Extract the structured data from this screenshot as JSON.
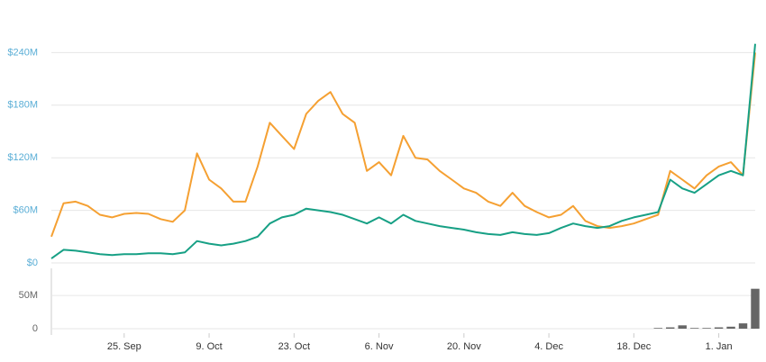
{
  "chart_data": [
    {
      "type": "line",
      "categories": [
        null,
        null,
        null,
        null,
        null,
        null,
        "25. Sep",
        null,
        null,
        null,
        null,
        null,
        null,
        "9. Oct",
        null,
        null,
        null,
        null,
        null,
        null,
        "23. Oct",
        null,
        null,
        null,
        null,
        null,
        null,
        "6. Nov",
        null,
        null,
        null,
        null,
        null,
        null,
        "20. Nov",
        null,
        null,
        null,
        null,
        null,
        null,
        "4. Dec",
        null,
        null,
        null,
        null,
        null,
        null,
        "18. Dec",
        null,
        null,
        null,
        null,
        null,
        null,
        "1. Jan",
        null,
        null,
        null
      ],
      "series": [
        {
          "color": "#f5a032",
          "values": [
            30000000,
            68000000,
            70000000,
            65000000,
            55000000,
            52000000,
            56000000,
            57000000,
            56000000,
            50000000,
            47000000,
            60000000,
            125000000,
            95000000,
            85000000,
            70000000,
            70000000,
            110000000,
            160000000,
            145000000,
            130000000,
            170000000,
            185000000,
            195000000,
            170000000,
            160000000,
            105000000,
            115000000,
            100000000,
            145000000,
            120000000,
            118000000,
            105000000,
            95000000,
            85000000,
            80000000,
            70000000,
            65000000,
            80000000,
            65000000,
            58000000,
            52000000,
            55000000,
            65000000,
            48000000,
            42000000,
            40000000,
            42000000,
            45000000,
            50000000,
            55000000,
            105000000,
            95000000,
            85000000,
            100000000,
            110000000,
            115000000,
            100000000,
            240000000
          ]
        },
        {
          "color": "#17a085",
          "values": [
            5000000,
            15000000,
            14000000,
            12000000,
            10000000,
            9000000,
            10000000,
            10000000,
            11000000,
            11000000,
            10000000,
            12000000,
            25000000,
            22000000,
            20000000,
            22000000,
            25000000,
            30000000,
            45000000,
            52000000,
            55000000,
            62000000,
            60000000,
            58000000,
            55000000,
            50000000,
            45000000,
            52000000,
            45000000,
            55000000,
            48000000,
            45000000,
            42000000,
            40000000,
            38000000,
            35000000,
            33000000,
            32000000,
            35000000,
            33000000,
            32000000,
            34000000,
            40000000,
            45000000,
            42000000,
            40000000,
            42000000,
            48000000,
            52000000,
            55000000,
            58000000,
            95000000,
            85000000,
            80000000,
            90000000,
            100000000,
            105000000,
            100000000,
            250000000
          ]
        }
      ],
      "ylim": [
        0,
        300000000
      ],
      "yticks": [
        {
          "value": 0,
          "label": "$0"
        },
        {
          "value": 60000000,
          "label": "$60M"
        },
        {
          "value": 120000000,
          "label": "$120M"
        },
        {
          "value": 180000000,
          "label": "$180M"
        },
        {
          "value": 240000000,
          "label": "$240M"
        }
      ],
      "grid": true
    },
    {
      "type": "bar",
      "categories": [
        null,
        null,
        null,
        null,
        null,
        null,
        "25. Sep",
        null,
        null,
        null,
        null,
        null,
        null,
        "9. Oct",
        null,
        null,
        null,
        null,
        null,
        null,
        "23. Oct",
        null,
        null,
        null,
        null,
        null,
        null,
        "6. Nov",
        null,
        null,
        null,
        null,
        null,
        null,
        "20. Nov",
        null,
        null,
        null,
        null,
        null,
        null,
        "4. Dec",
        null,
        null,
        null,
        null,
        null,
        null,
        "18. Dec",
        null,
        null,
        null,
        null,
        null,
        null,
        "1. Jan",
        null,
        null,
        null
      ],
      "values": [
        0,
        0,
        0,
        0,
        0,
        0,
        0,
        0,
        0,
        0,
        0,
        0,
        0,
        0,
        0,
        0,
        0,
        0,
        0,
        0,
        0,
        0,
        0,
        0,
        0,
        0,
        0,
        0,
        0,
        0,
        0,
        0,
        0,
        0,
        0,
        0,
        0,
        0,
        0,
        0,
        0,
        0,
        0,
        0,
        0,
        0,
        0,
        0,
        0,
        0,
        1000000,
        2000000,
        5000000,
        1000000,
        1000000,
        2000000,
        3000000,
        8000000,
        60000000
      ],
      "color": "#666666",
      "ylim": [
        0,
        88000000
      ],
      "yticks": [
        0,
        {
          "value": 50000000,
          "label": "50M"
        }
      ],
      "grid": true
    }
  ]
}
